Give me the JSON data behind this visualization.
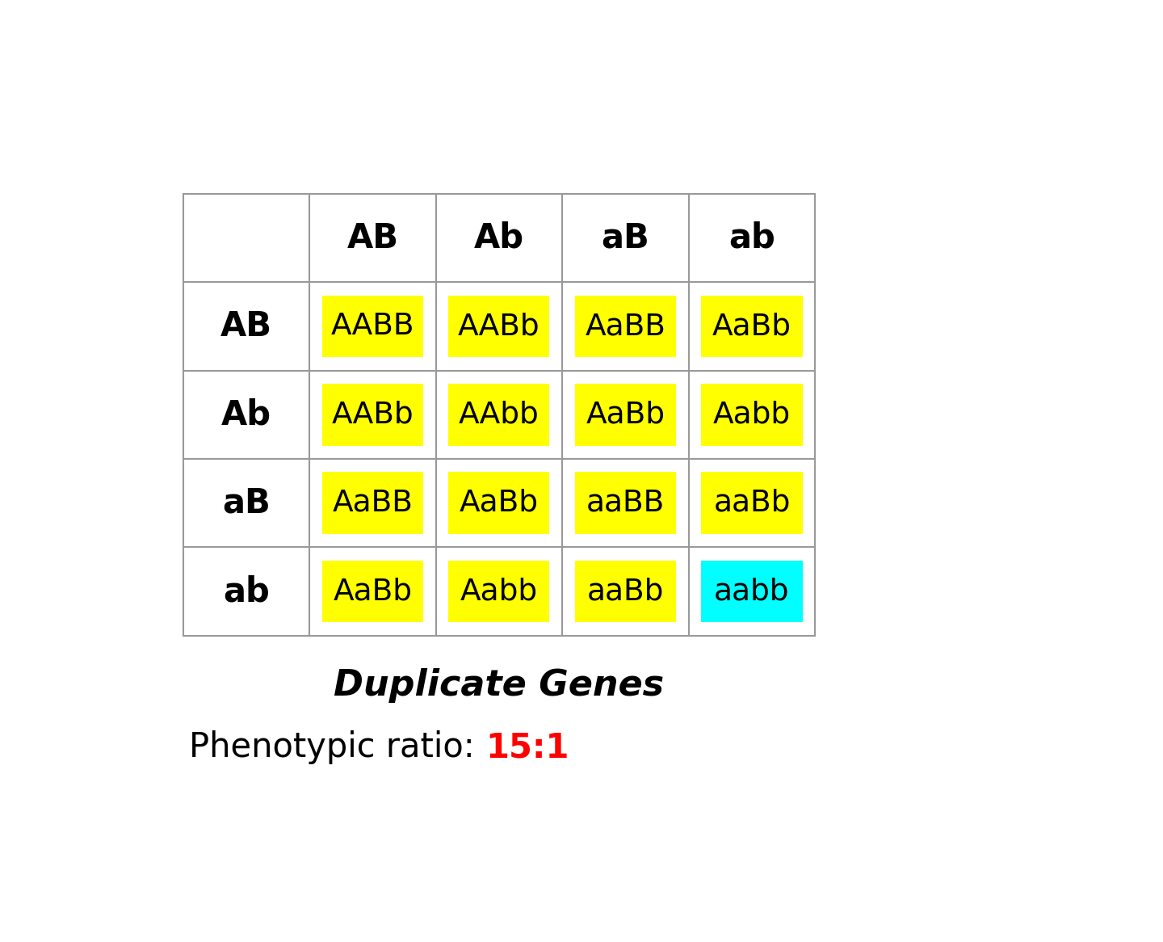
{
  "col_headers": [
    "",
    "AB",
    "Ab",
    "aB",
    "ab"
  ],
  "row_headers": [
    "AB",
    "Ab",
    "aB",
    "ab"
  ],
  "cells": [
    [
      "AABB",
      "AABb",
      "AaBB",
      "AaBb"
    ],
    [
      "AABb",
      "AAbb",
      "AaBb",
      "Aabb"
    ],
    [
      "AaBB",
      "AaBb",
      "aaBB",
      "aaBb"
    ],
    [
      "AaBb",
      "Aabb",
      "aaBb",
      "aabb"
    ]
  ],
  "cell_colors": [
    [
      "#FFFF00",
      "#FFFF00",
      "#FFFF00",
      "#FFFF00"
    ],
    [
      "#FFFF00",
      "#FFFF00",
      "#FFFF00",
      "#FFFF00"
    ],
    [
      "#FFFF00",
      "#FFFF00",
      "#FFFF00",
      "#FFFF00"
    ],
    [
      "#FFFF00",
      "#FFFF00",
      "#FFFF00",
      "#00FFFF"
    ]
  ],
  "title": "Duplicate Genes",
  "phenotypic_label": "Phenotypic ratio: ",
  "phenotypic_ratio": "15:1",
  "bg_color": "#FFFFFF",
  "grid_color": "#999999",
  "header_fontsize": 30,
  "cell_fontsize": 27,
  "title_fontsize": 32,
  "ratio_fontsize": 30,
  "ratio_color": "#FF0000"
}
